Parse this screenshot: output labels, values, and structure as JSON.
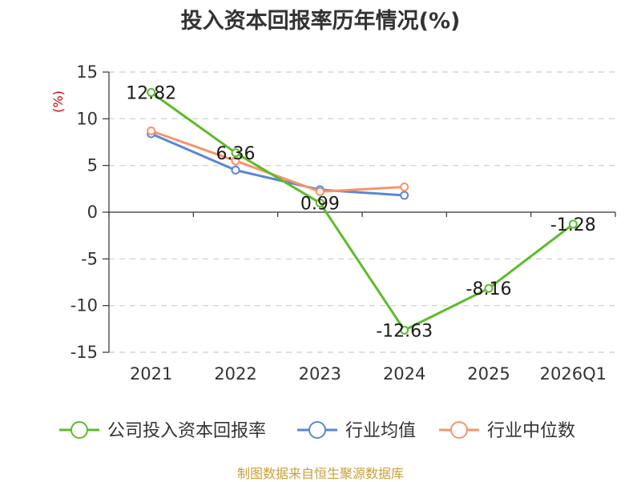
{
  "chart_data": {
    "type": "line",
    "title": "投入资本回报率历年情况(%)",
    "ylabel": "(%)",
    "xlabel": "",
    "categories": [
      "2021",
      "2022",
      "2023",
      "2024",
      "2025",
      "2026Q1"
    ],
    "ylim": [
      -15,
      15
    ],
    "yticks": [
      15,
      10,
      5,
      0,
      -5,
      -10,
      -15
    ],
    "grid": true,
    "legend_position": "bottom",
    "series": [
      {
        "name": "公司投入资本回报率",
        "color": "#5dbb2b",
        "values": [
          12.82,
          6.36,
          0.99,
          -12.63,
          -8.16,
          -1.28
        ],
        "labels": [
          "12.82",
          "6.36",
          "0.99",
          "-12.63",
          "-8.16",
          "-1.28"
        ]
      },
      {
        "name": "行业均值",
        "color": "#5b86d6",
        "values": [
          8.4,
          4.5,
          2.4,
          1.8,
          null,
          null
        ]
      },
      {
        "name": "行业中位数",
        "color": "#f5956a",
        "values": [
          8.7,
          5.5,
          2.2,
          2.7,
          null,
          null
        ]
      }
    ],
    "source_note": "制图数据来自恒生聚源数据库"
  }
}
